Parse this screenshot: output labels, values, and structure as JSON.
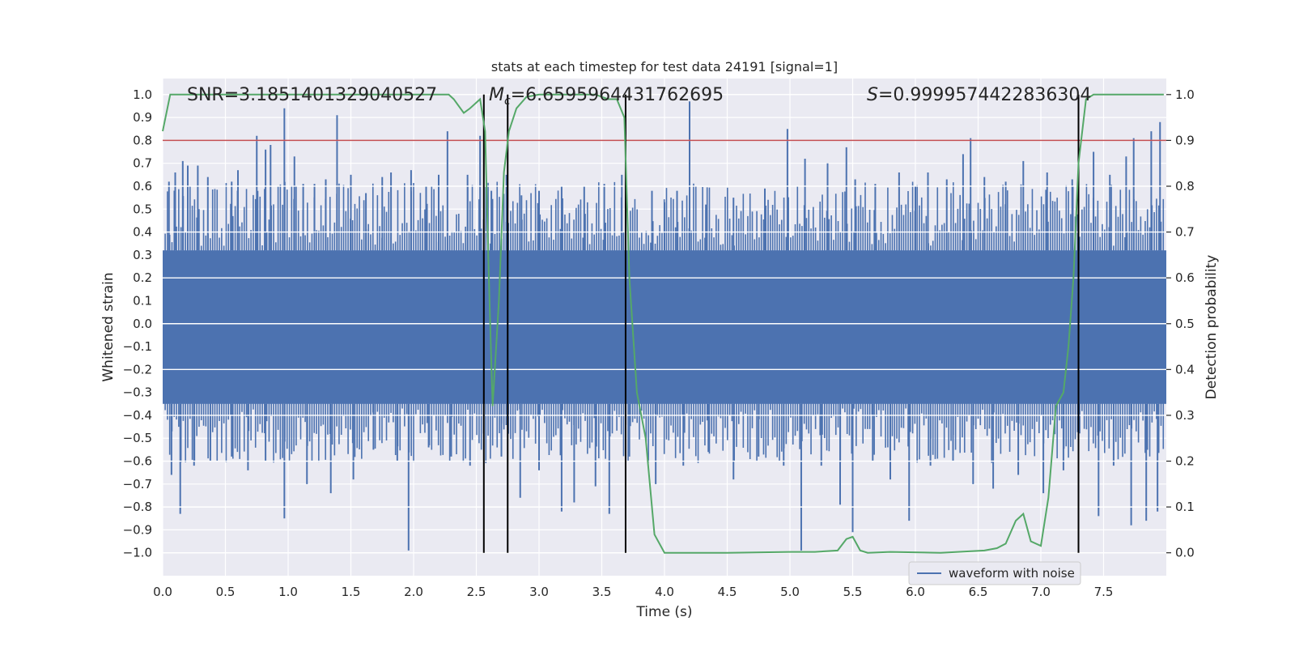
{
  "chart_data": {
    "type": "line",
    "title": "stats at each timestep for test data 24191 [signal=1]",
    "xlabel": "Time (s)",
    "ylabel_left": "Whitened strain",
    "ylabel_right": "Detection probability",
    "xlim": [
      0.0,
      8.0
    ],
    "ylim_left": [
      -1.1,
      1.07
    ],
    "ylim_right": [
      -0.05,
      1.035
    ],
    "x_ticks": [
      0.0,
      0.5,
      1.0,
      1.5,
      2.0,
      2.5,
      3.0,
      3.5,
      4.0,
      4.5,
      5.0,
      5.5,
      6.0,
      6.5,
      7.0,
      7.5
    ],
    "x_tick_labels": [
      "0.0",
      "0.5",
      "1.0",
      "1.5",
      "2.0",
      "2.5",
      "3.0",
      "3.5",
      "4.0",
      "4.5",
      "5.0",
      "5.5",
      "6.0",
      "6.5",
      "7.0",
      "7.5"
    ],
    "y_left_ticks": [
      -1.0,
      -0.9,
      -0.8,
      -0.7,
      -0.6,
      -0.5,
      -0.4,
      -0.3,
      -0.2,
      -0.1,
      0.0,
      0.1,
      0.2,
      0.3,
      0.4,
      0.5,
      0.6,
      0.7,
      0.8,
      0.9,
      1.0
    ],
    "y_left_tick_labels": [
      "−1.0",
      "−0.9",
      "−0.8",
      "−0.7",
      "−0.6",
      "−0.5",
      "−0.4",
      "−0.3",
      "−0.2",
      "−0.1",
      "0.0",
      "0.1",
      "0.2",
      "0.3",
      "0.4",
      "0.5",
      "0.6",
      "0.7",
      "0.8",
      "0.9",
      "1.0"
    ],
    "y_right_ticks": [
      0.0,
      0.1,
      0.2,
      0.3,
      0.4,
      0.5,
      0.6,
      0.7,
      0.8,
      0.9,
      1.0
    ],
    "y_right_tick_labels": [
      "0.0",
      "0.1",
      "0.2",
      "0.3",
      "0.4",
      "0.5",
      "0.6",
      "0.7",
      "0.8",
      "0.9",
      "1.0"
    ],
    "grid": true,
    "annotations": [
      {
        "name": "snr",
        "text": "SNR=3.1851401329040527",
        "x": 0.19,
        "y_right": 1.01
      },
      {
        "name": "chirp-mass",
        "prefix": "M",
        "subscript": "c",
        "text": "=6.6595964431762695",
        "x": 2.6,
        "y_right": 1.01
      },
      {
        "name": "score",
        "prefix": "S",
        "text": "=0.9999574422836304",
        "x": 5.6,
        "y_right": 1.01
      }
    ],
    "vertical_markers_x": [
      2.56,
      2.75,
      3.69,
      7.3
    ],
    "vertical_markers_range_right": [
      0.0,
      1.0
    ],
    "threshold_line": {
      "y_right": 0.9,
      "color": "#c44e52"
    },
    "waveform": {
      "name": "waveform with noise",
      "color": "#4c72b0",
      "band_envelope": {
        "lower": -0.35,
        "upper": 0.32
      },
      "spikes": [
        {
          "x": 0.05,
          "y": 0.62
        },
        {
          "x": 0.1,
          "y": 0.66
        },
        {
          "x": 0.16,
          "y": 0.71
        },
        {
          "x": 0.2,
          "y": 0.69
        },
        {
          "x": 0.28,
          "y": 0.69
        },
        {
          "x": 0.36,
          "y": 0.64
        },
        {
          "x": 0.55,
          "y": 0.62
        },
        {
          "x": 0.6,
          "y": 0.67
        },
        {
          "x": 0.75,
          "y": 0.82
        },
        {
          "x": 0.82,
          "y": 0.76
        },
        {
          "x": 0.86,
          "y": 0.78
        },
        {
          "x": 0.97,
          "y": 0.94
        },
        {
          "x": 1.05,
          "y": 0.73
        },
        {
          "x": 1.12,
          "y": 0.61
        },
        {
          "x": 1.21,
          "y": 0.61
        },
        {
          "x": 1.3,
          "y": 0.63
        },
        {
          "x": 1.39,
          "y": 0.91
        },
        {
          "x": 1.5,
          "y": 0.65
        },
        {
          "x": 1.62,
          "y": 0.57
        },
        {
          "x": 1.75,
          "y": 0.64
        },
        {
          "x": 1.82,
          "y": 0.66
        },
        {
          "x": 1.98,
          "y": 0.67
        },
        {
          "x": 2.1,
          "y": 0.6
        },
        {
          "x": 2.2,
          "y": 0.65
        },
        {
          "x": 2.27,
          "y": 0.84
        },
        {
          "x": 2.43,
          "y": 0.65
        },
        {
          "x": 2.53,
          "y": 0.82
        },
        {
          "x": 2.62,
          "y": 0.58
        },
        {
          "x": 2.74,
          "y": 0.65
        },
        {
          "x": 2.86,
          "y": 0.56
        },
        {
          "x": 3.0,
          "y": 0.58
        },
        {
          "x": 3.18,
          "y": 0.6
        },
        {
          "x": 3.36,
          "y": 0.6
        },
        {
          "x": 3.52,
          "y": 0.61
        },
        {
          "x": 3.66,
          "y": 0.65
        },
        {
          "x": 3.9,
          "y": 0.58
        },
        {
          "x": 4.0,
          "y": 0.53
        },
        {
          "x": 4.1,
          "y": 0.58
        },
        {
          "x": 4.2,
          "y": 0.97
        },
        {
          "x": 4.33,
          "y": 0.52
        },
        {
          "x": 4.55,
          "y": 0.55
        },
        {
          "x": 4.8,
          "y": 0.59
        },
        {
          "x": 4.98,
          "y": 0.85
        },
        {
          "x": 5.12,
          "y": 0.72
        },
        {
          "x": 5.3,
          "y": 0.7
        },
        {
          "x": 5.45,
          "y": 0.77
        },
        {
          "x": 5.52,
          "y": 0.63
        },
        {
          "x": 5.68,
          "y": 0.61
        },
        {
          "x": 5.87,
          "y": 0.66
        },
        {
          "x": 6.0,
          "y": 0.6
        },
        {
          "x": 6.1,
          "y": 0.66
        },
        {
          "x": 6.25,
          "y": 0.63
        },
        {
          "x": 6.38,
          "y": 0.74
        },
        {
          "x": 6.44,
          "y": 0.81
        },
        {
          "x": 6.55,
          "y": 0.64
        },
        {
          "x": 6.72,
          "y": 0.62
        },
        {
          "x": 6.86,
          "y": 0.71
        },
        {
          "x": 7.05,
          "y": 0.66
        },
        {
          "x": 7.25,
          "y": 0.63
        },
        {
          "x": 7.42,
          "y": 0.75
        },
        {
          "x": 7.55,
          "y": 0.65
        },
        {
          "x": 7.68,
          "y": 0.73
        },
        {
          "x": 7.74,
          "y": 0.81
        },
        {
          "x": 7.88,
          "y": 0.84
        },
        {
          "x": 7.95,
          "y": 0.88
        },
        {
          "x": 0.07,
          "y": -0.66
        },
        {
          "x": 0.14,
          "y": -0.83
        },
        {
          "x": 0.25,
          "y": -0.62
        },
        {
          "x": 0.38,
          "y": -0.6
        },
        {
          "x": 0.55,
          "y": -0.58
        },
        {
          "x": 0.68,
          "y": -0.64
        },
        {
          "x": 0.82,
          "y": -0.6
        },
        {
          "x": 0.97,
          "y": -0.85
        },
        {
          "x": 1.15,
          "y": -0.7
        },
        {
          "x": 1.34,
          "y": -0.74
        },
        {
          "x": 1.52,
          "y": -0.68
        },
        {
          "x": 1.68,
          "y": -0.55
        },
        {
          "x": 1.87,
          "y": -0.6
        },
        {
          "x": 1.96,
          "y": -0.99
        },
        {
          "x": 2.12,
          "y": -0.54
        },
        {
          "x": 2.3,
          "y": -0.58
        },
        {
          "x": 2.45,
          "y": -0.62
        },
        {
          "x": 2.7,
          "y": -0.58
        },
        {
          "x": 2.85,
          "y": -0.76
        },
        {
          "x": 3.0,
          "y": -0.64
        },
        {
          "x": 3.18,
          "y": -0.82
        },
        {
          "x": 3.28,
          "y": -0.78
        },
        {
          "x": 3.45,
          "y": -0.71
        },
        {
          "x": 3.56,
          "y": -0.83
        },
        {
          "x": 3.72,
          "y": -0.58
        },
        {
          "x": 3.93,
          "y": -0.7
        },
        {
          "x": 4.15,
          "y": -0.62
        },
        {
          "x": 4.35,
          "y": -0.56
        },
        {
          "x": 4.55,
          "y": -0.68
        },
        {
          "x": 4.75,
          "y": -0.58
        },
        {
          "x": 4.95,
          "y": -0.62
        },
        {
          "x": 5.09,
          "y": -0.99
        },
        {
          "x": 5.25,
          "y": -0.62
        },
        {
          "x": 5.4,
          "y": -0.79
        },
        {
          "x": 5.5,
          "y": -0.91
        },
        {
          "x": 5.66,
          "y": -0.6
        },
        {
          "x": 5.8,
          "y": -0.68
        },
        {
          "x": 5.95,
          "y": -0.86
        },
        {
          "x": 6.12,
          "y": -0.62
        },
        {
          "x": 6.3,
          "y": -0.6
        },
        {
          "x": 6.46,
          "y": -0.7
        },
        {
          "x": 6.62,
          "y": -0.72
        },
        {
          "x": 6.82,
          "y": -0.66
        },
        {
          "x": 7.02,
          "y": -0.74
        },
        {
          "x": 7.18,
          "y": -0.64
        },
        {
          "x": 7.3,
          "y": -0.58
        },
        {
          "x": 7.46,
          "y": -0.84
        },
        {
          "x": 7.58,
          "y": -0.62
        },
        {
          "x": 7.72,
          "y": -0.88
        },
        {
          "x": 7.84,
          "y": -0.86
        },
        {
          "x": 7.93,
          "y": -0.82
        }
      ]
    },
    "detection_probability": {
      "color": "#55a868",
      "x": [
        0.0,
        0.06,
        0.15,
        0.3,
        0.6,
        1.0,
        1.5,
        2.0,
        2.28,
        2.32,
        2.4,
        2.45,
        2.53,
        2.57,
        2.6,
        2.63,
        2.68,
        2.72,
        2.76,
        2.82,
        2.9,
        3.0,
        3.2,
        3.45,
        3.55,
        3.62,
        3.68,
        3.72,
        3.78,
        3.85,
        3.92,
        4.0,
        4.5,
        5.0,
        5.2,
        5.38,
        5.45,
        5.5,
        5.56,
        5.62,
        5.8,
        6.2,
        6.55,
        6.65,
        6.72,
        6.8,
        6.86,
        6.92,
        7.0,
        7.06,
        7.12,
        7.18,
        7.22,
        7.26,
        7.3,
        7.36,
        7.42,
        7.5,
        7.6,
        7.8,
        7.98
      ],
      "y": [
        0.92,
        1.0,
        1.0,
        1.0,
        1.0,
        1.0,
        1.0,
        1.0,
        1.0,
        0.99,
        0.96,
        0.97,
        0.99,
        0.92,
        0.6,
        0.32,
        0.55,
        0.83,
        0.92,
        0.97,
        0.995,
        1.0,
        1.0,
        1.0,
        0.99,
        0.99,
        0.95,
        0.6,
        0.35,
        0.25,
        0.04,
        0.0,
        0.0,
        0.002,
        0.002,
        0.005,
        0.03,
        0.035,
        0.005,
        0.0,
        0.002,
        0.0,
        0.005,
        0.01,
        0.02,
        0.07,
        0.085,
        0.025,
        0.015,
        0.12,
        0.32,
        0.35,
        0.45,
        0.6,
        0.85,
        0.99,
        1.0,
        1.0,
        1.0,
        1.0,
        1.0
      ]
    },
    "legend": {
      "label": "waveform with noise",
      "placement": "lower-right"
    }
  }
}
